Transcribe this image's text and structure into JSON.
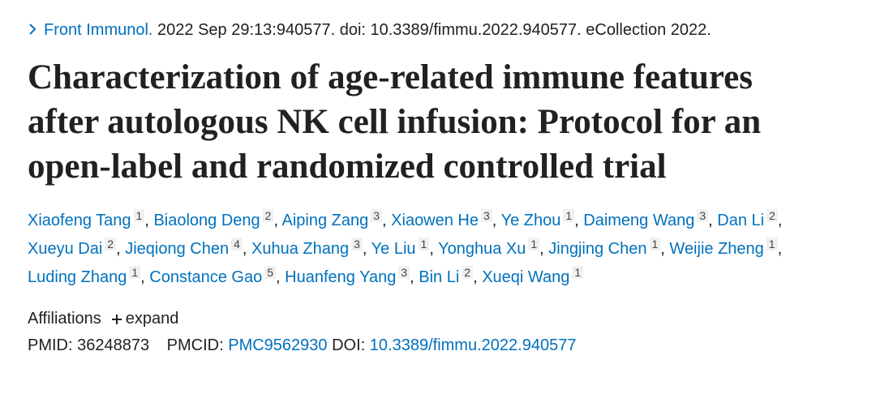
{
  "citation": {
    "journal": "Front Immunol.",
    "details": "2022 Sep 29:13:940577. doi: 10.3389/fimmu.2022.940577. eCollection 2022."
  },
  "title": "Characterization of age-related immune features after autologous NK cell infusion: Protocol for an open-label and randomized controlled trial",
  "authors": {
    "separator": ",",
    "list": [
      {
        "name": "Xiaofeng Tang",
        "aff": "1"
      },
      {
        "name": "Biaolong Deng",
        "aff": "2"
      },
      {
        "name": "Aiping Zang",
        "aff": "3"
      },
      {
        "name": "Xiaowen He",
        "aff": "3"
      },
      {
        "name": "Ye Zhou",
        "aff": "1"
      },
      {
        "name": "Daimeng Wang",
        "aff": "3"
      },
      {
        "name": "Dan Li",
        "aff": "2"
      },
      {
        "name": "Xueyu Dai",
        "aff": "2"
      },
      {
        "name": "Jieqiong Chen",
        "aff": "4"
      },
      {
        "name": "Xuhua Zhang",
        "aff": "3"
      },
      {
        "name": "Ye Liu",
        "aff": "1"
      },
      {
        "name": "Yonghua Xu",
        "aff": "1"
      },
      {
        "name": "Jingjing Chen",
        "aff": "1"
      },
      {
        "name": "Weijie Zheng",
        "aff": "1"
      },
      {
        "name": "Luding Zhang",
        "aff": "1"
      },
      {
        "name": "Constance Gao",
        "aff": "5"
      },
      {
        "name": "Huanfeng Yang",
        "aff": "3"
      },
      {
        "name": "Bin Li",
        "aff": "2"
      },
      {
        "name": "Xueqi Wang",
        "aff": "1"
      }
    ]
  },
  "affiliations": {
    "label": "Affiliations",
    "expand": "expand"
  },
  "identifiers": {
    "pmid_label": "PMID:",
    "pmid": "36248873",
    "pmcid_label": "PMCID:",
    "pmcid": "PMC9562930",
    "doi_label": "DOI:",
    "doi": "10.3389/fimmu.2022.940577"
  }
}
